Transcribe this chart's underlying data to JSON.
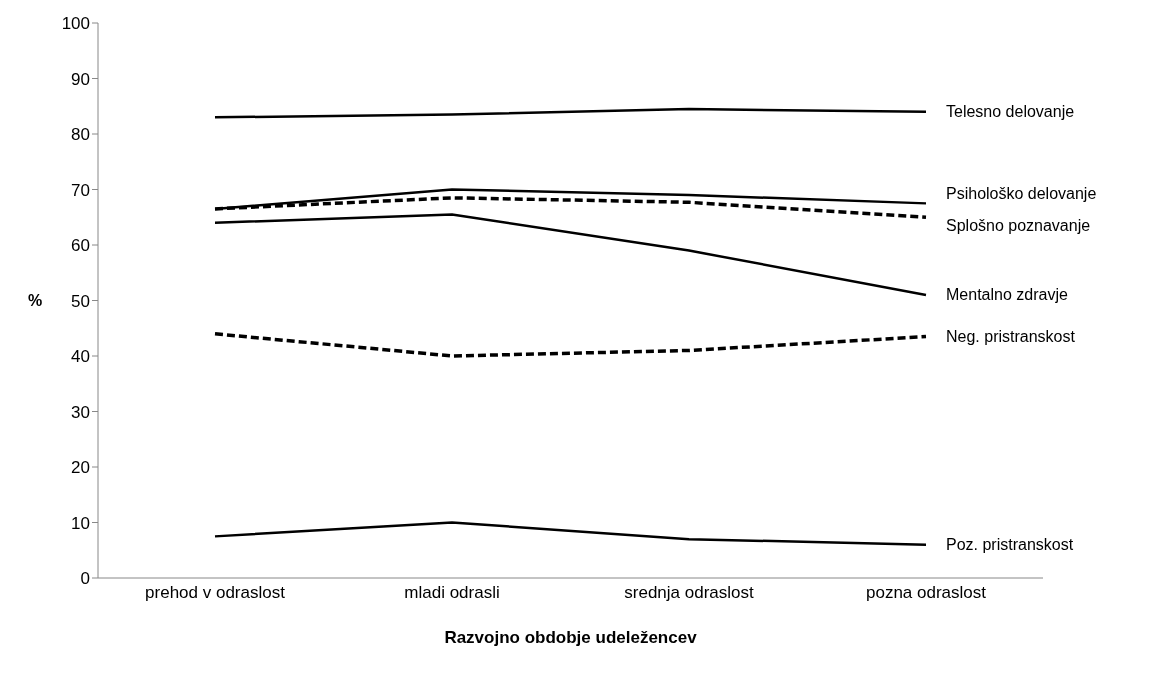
{
  "chart_data": {
    "type": "line",
    "xlabel": "Razvojno obdobje udeležencev",
    "ylabel": "%",
    "categories": [
      "prehod v odraslost",
      "mladi odrasli",
      "srednja odraslost",
      "pozna odraslost"
    ],
    "ylim": [
      0,
      100
    ],
    "yticks": [
      0,
      10,
      20,
      30,
      40,
      50,
      60,
      70,
      80,
      90,
      100
    ],
    "grid": false,
    "legend": false,
    "marker": "none",
    "series": [
      {
        "name": "Telesno delovanje",
        "color": "#000000",
        "line_style": "solid",
        "values": [
          83,
          83.5,
          84.5,
          84
        ]
      },
      {
        "name": "Psihološko delovanje",
        "color": "#000000",
        "line_style": "solid",
        "values": [
          66.5,
          70,
          69,
          67.5
        ]
      },
      {
        "name": "Splošno poznavanje",
        "color": "#000000",
        "line_style": "dashed",
        "values": [
          66.5,
          68.5,
          67.7,
          65
        ]
      },
      {
        "name": "Mentalno zdravje",
        "color": "#000000",
        "line_style": "solid",
        "values": [
          64,
          65.5,
          59,
          51
        ]
      },
      {
        "name": "Neg. pristranskost",
        "color": "#000000",
        "line_style": "dashed",
        "values": [
          44,
          40,
          41,
          43.5
        ]
      },
      {
        "name": "Poz. pristranskost",
        "color": "#000000",
        "line_style": "solid",
        "values": [
          7.5,
          10,
          7,
          6
        ]
      }
    ]
  }
}
